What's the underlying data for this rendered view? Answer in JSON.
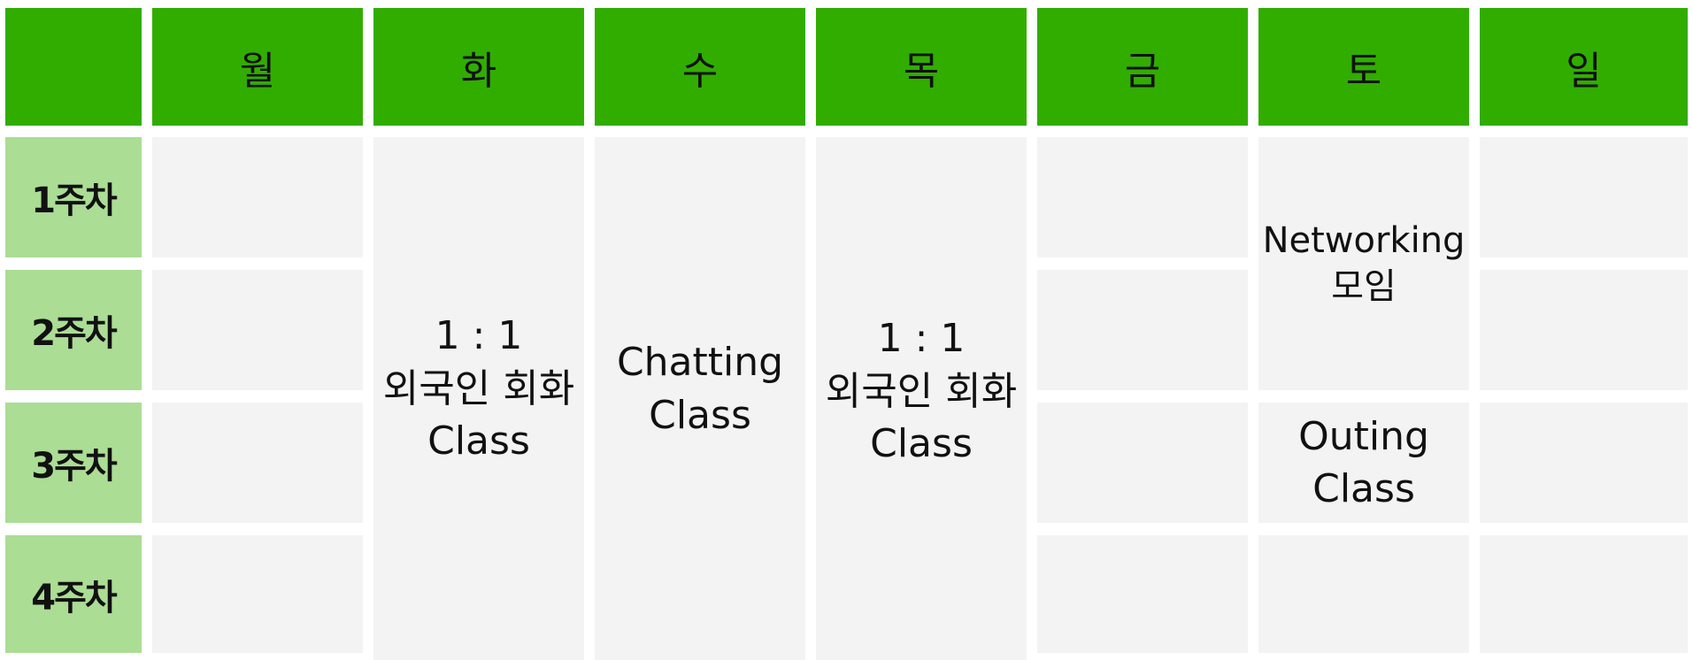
{
  "header": {
    "corner": "",
    "days": [
      "월",
      "화",
      "수",
      "목",
      "금",
      "토",
      "일"
    ]
  },
  "weeks": [
    "1주차",
    "2주차",
    "3주차",
    "4주차"
  ],
  "events": {
    "tuesday": {
      "line1": "1 : 1",
      "line2": "외국인 회화",
      "line3": "Class"
    },
    "wednesday": {
      "line1": "Chatting",
      "line2": "Class"
    },
    "thursday": {
      "line1": "1 : 1",
      "line2": "외국인 회화",
      "line3": "Class"
    },
    "saturday_top": {
      "line1": "Networking",
      "line2": "모임"
    },
    "saturday_bottom": {
      "line1": "Outing",
      "line2": "Class"
    }
  },
  "colors": {
    "header_green": "#31ad00",
    "week_green": "#abdd95",
    "cell_gray": "#f3f3f3"
  }
}
